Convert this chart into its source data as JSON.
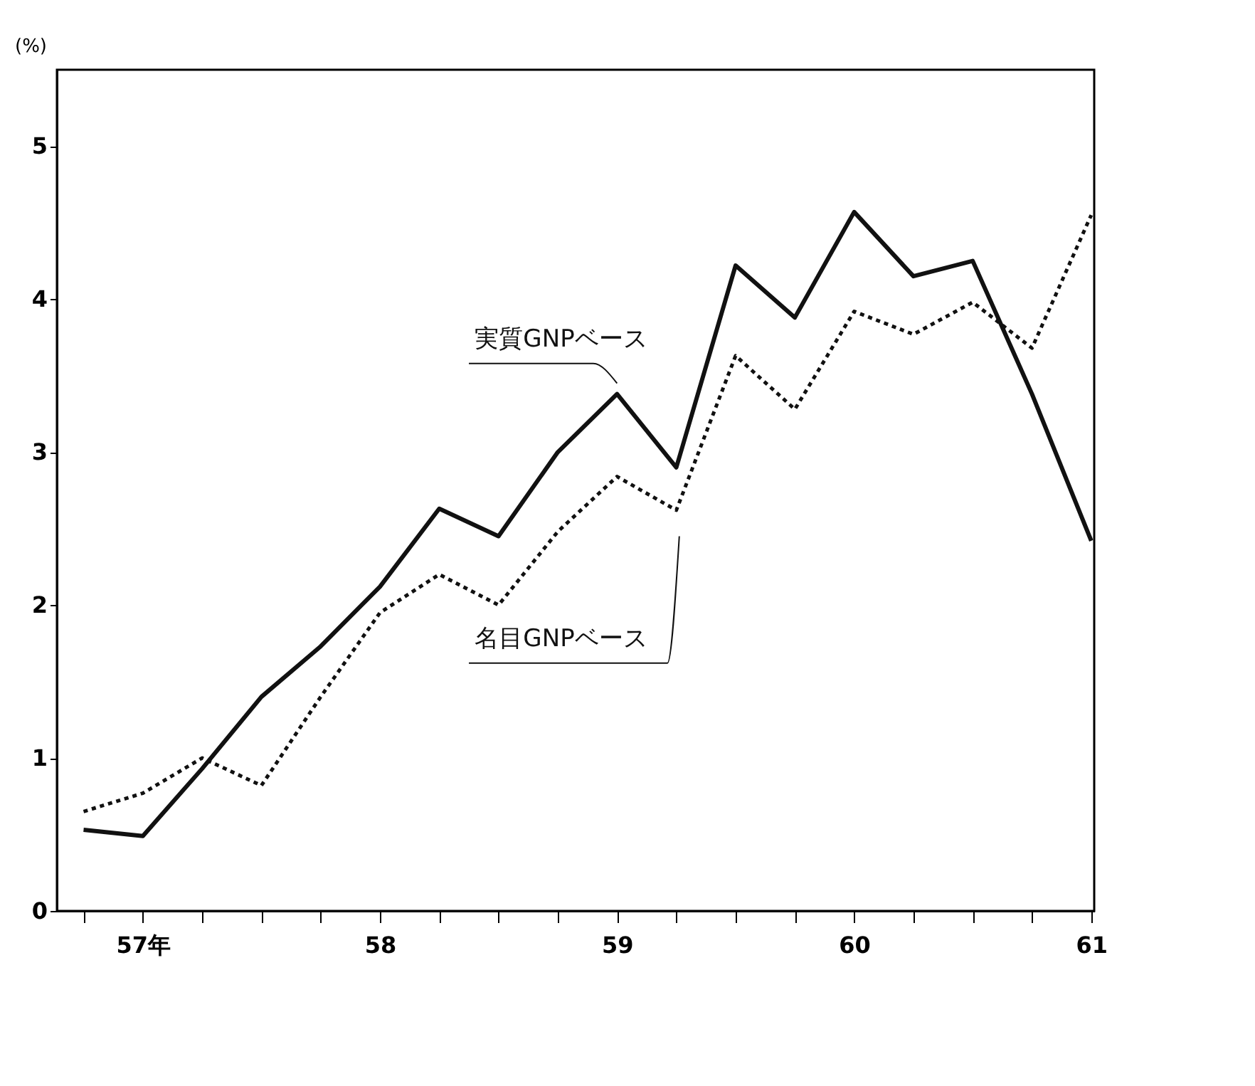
{
  "chart_data": {
    "type": "line",
    "ylabel": "(%)",
    "categories": [
      null,
      "57年",
      null,
      null,
      null,
      "58",
      null,
      null,
      null,
      "59",
      null,
      null,
      null,
      "60",
      null,
      null,
      null,
      "61"
    ],
    "series": [
      {
        "name": "実質GNPベース",
        "color": "#111111",
        "line_style": "solid",
        "values": [
          0.53,
          0.49,
          0.93,
          1.4,
          1.73,
          2.12,
          2.63,
          2.45,
          3.0,
          3.38,
          2.9,
          4.22,
          3.88,
          4.57,
          4.15,
          4.25,
          3.38,
          2.42
        ]
      },
      {
        "name": "名目GNPベース",
        "color": "#111111",
        "line_style": "dotted",
        "values": [
          0.65,
          0.77,
          1.0,
          0.82,
          1.4,
          1.95,
          2.2,
          2.0,
          2.48,
          2.84,
          2.62,
          3.63,
          3.28,
          3.92,
          3.77,
          3.98,
          3.68,
          4.55
        ]
      }
    ],
    "ylim": [
      0,
      5.5
    ],
    "yticks": [
      0,
      1,
      2,
      3,
      4,
      5
    ],
    "grid": false,
    "legend": false,
    "marker": "none"
  }
}
